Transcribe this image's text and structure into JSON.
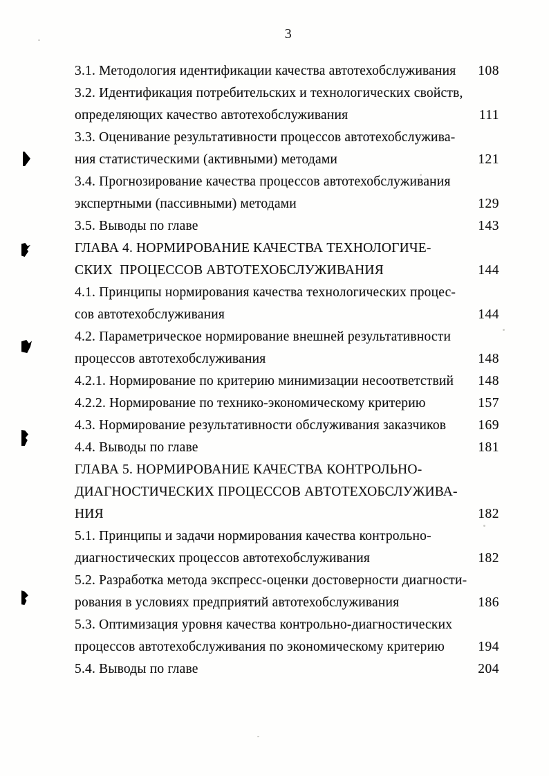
{
  "page": {
    "number": "3"
  },
  "colors": {
    "ink": "#141414",
    "paper": "#fefefd"
  },
  "toc": {
    "rows": [
      {
        "text": "3.1. Методология идентификации качества автотехобслуживания",
        "page": "108"
      },
      {
        "text": "3.2. Идентификация потребительских и технологических свойств,",
        "page": ""
      },
      {
        "text": "определяющих качество автотехобслуживания",
        "page": "111"
      },
      {
        "text": "3.3. Оценивание результативности процессов автотехобслужива-",
        "page": ""
      },
      {
        "text": "ния статистическими (активными) методами",
        "page": "121"
      },
      {
        "text": "3.4. Прогнозирование качества процессов автотехобслуживания",
        "page": ""
      },
      {
        "text": "экспертными (пассивными) методами",
        "page": "129"
      },
      {
        "text": "3.5. Выводы по главе",
        "page": "143"
      },
      {
        "text": "ГЛАВА 4. НОРМИРОВАНИЕ КАЧЕСТВА ТЕХНОЛОГИЧЕ-",
        "page": ""
      },
      {
        "text": "СКИХ  ПРОЦЕССОВ АВТОТЕХОБСЛУЖИВАНИЯ",
        "page": "144"
      },
      {
        "text": "4.1. Принципы нормирования качества технологических процес-",
        "page": ""
      },
      {
        "text": "сов автотехобслуживания",
        "page": "144"
      },
      {
        "text": "4.2. Параметрическое нормирование внешней результативности",
        "page": ""
      },
      {
        "text": "процессов автотехобслуживания",
        "page": "148"
      },
      {
        "text": "4.2.1. Нормирование по критерию минимизации несоответствий",
        "page": "148"
      },
      {
        "text": "4.2.2. Нормирование по технико-экономическому критерию",
        "page": "157"
      },
      {
        "text": "4.3. Нормирование результативности обслуживания заказчиков",
        "page": "169"
      },
      {
        "text": "4.4. Выводы по главе",
        "page": "181"
      },
      {
        "text": "ГЛАВА 5. НОРМИРОВАНИЕ КАЧЕСТВА КОНТРОЛЬНО-",
        "page": ""
      },
      {
        "text": "ДИАГНОСТИЧЕСКИХ ПРОЦЕССОВ АВТОТЕХОБСЛУЖИВА-",
        "page": ""
      },
      {
        "text": "НИЯ",
        "page": "182"
      },
      {
        "text": "5.1. Принципы и задачи нормирования качества контрольно-",
        "page": ""
      },
      {
        "text": "диагностических процессов автотехобслуживания",
        "page": "182"
      },
      {
        "text": "5.2. Разработка метода экспресс-оценки достоверности диагности-",
        "page": ""
      },
      {
        "text": "рования в условиях предприятий автотехобслуживания",
        "page": "186"
      },
      {
        "text": "5.3. Оптимизация уровня качества контрольно-диагностических",
        "page": ""
      },
      {
        "text": "процессов автотехобслуживания по экономическому критерию",
        "page": "194"
      },
      {
        "text": "5.4. Выводы по главе",
        "page": "204"
      }
    ]
  }
}
